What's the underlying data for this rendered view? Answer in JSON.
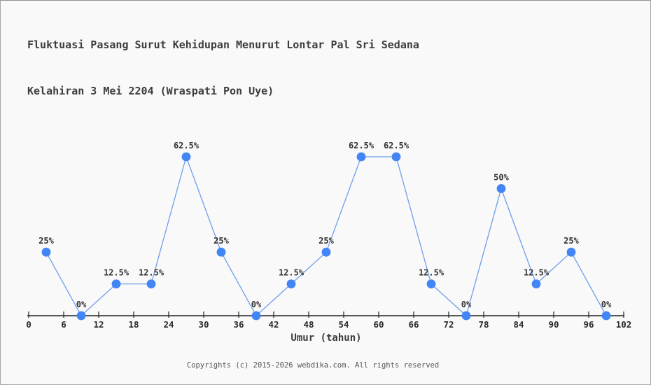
{
  "page": {
    "title_line1": "Fluktuasi Pasang Surut Kehidupan Menurut Lontar Pal Sri Sedana",
    "title_line2": "Kelahiran 3 Mei 2204 (Wraspati Pon Uye)",
    "footer": "Copyrights (c) 2015-2026 webdika.com. All rights reserved"
  },
  "chart_data": {
    "type": "line",
    "title": "Fluktuasi Pasang Surut Kehidupan Menurut Lontar Pal Sri Sedana Kelahiran 3 Mei 2204 (Wraspati Pon Uye)",
    "xlabel": "Umur (tahun)",
    "ylabel": "",
    "x": [
      3,
      9,
      15,
      21,
      27,
      33,
      39,
      45,
      51,
      57,
      63,
      69,
      75,
      81,
      87,
      93,
      99
    ],
    "values": [
      25,
      0,
      12.5,
      12.5,
      62.5,
      25,
      0,
      12.5,
      25,
      62.5,
      62.5,
      12.5,
      0,
      50,
      12.5,
      25,
      0
    ],
    "point_labels": [
      "25%",
      "0%",
      "12.5%",
      "12.5%",
      "62.5%",
      "25%",
      "0%",
      "12.5%",
      "25%",
      "62.5%",
      "62.5%",
      "12.5%",
      "0%",
      "50%",
      "12.5%",
      "25%",
      "0%"
    ],
    "x_ticks": [
      0,
      6,
      12,
      18,
      24,
      30,
      36,
      42,
      48,
      54,
      60,
      66,
      72,
      78,
      84,
      90,
      96,
      102
    ],
    "xlim": [
      0,
      102
    ],
    "ylim": [
      0,
      70
    ],
    "grid": false,
    "legend": "none",
    "colors": {
      "line": "#6d9eeb",
      "marker": "#4285f4",
      "axis": "#222222",
      "point_label": "#333333",
      "tick_label": "#2a2a2a",
      "background": "#f9f9f9"
    }
  }
}
